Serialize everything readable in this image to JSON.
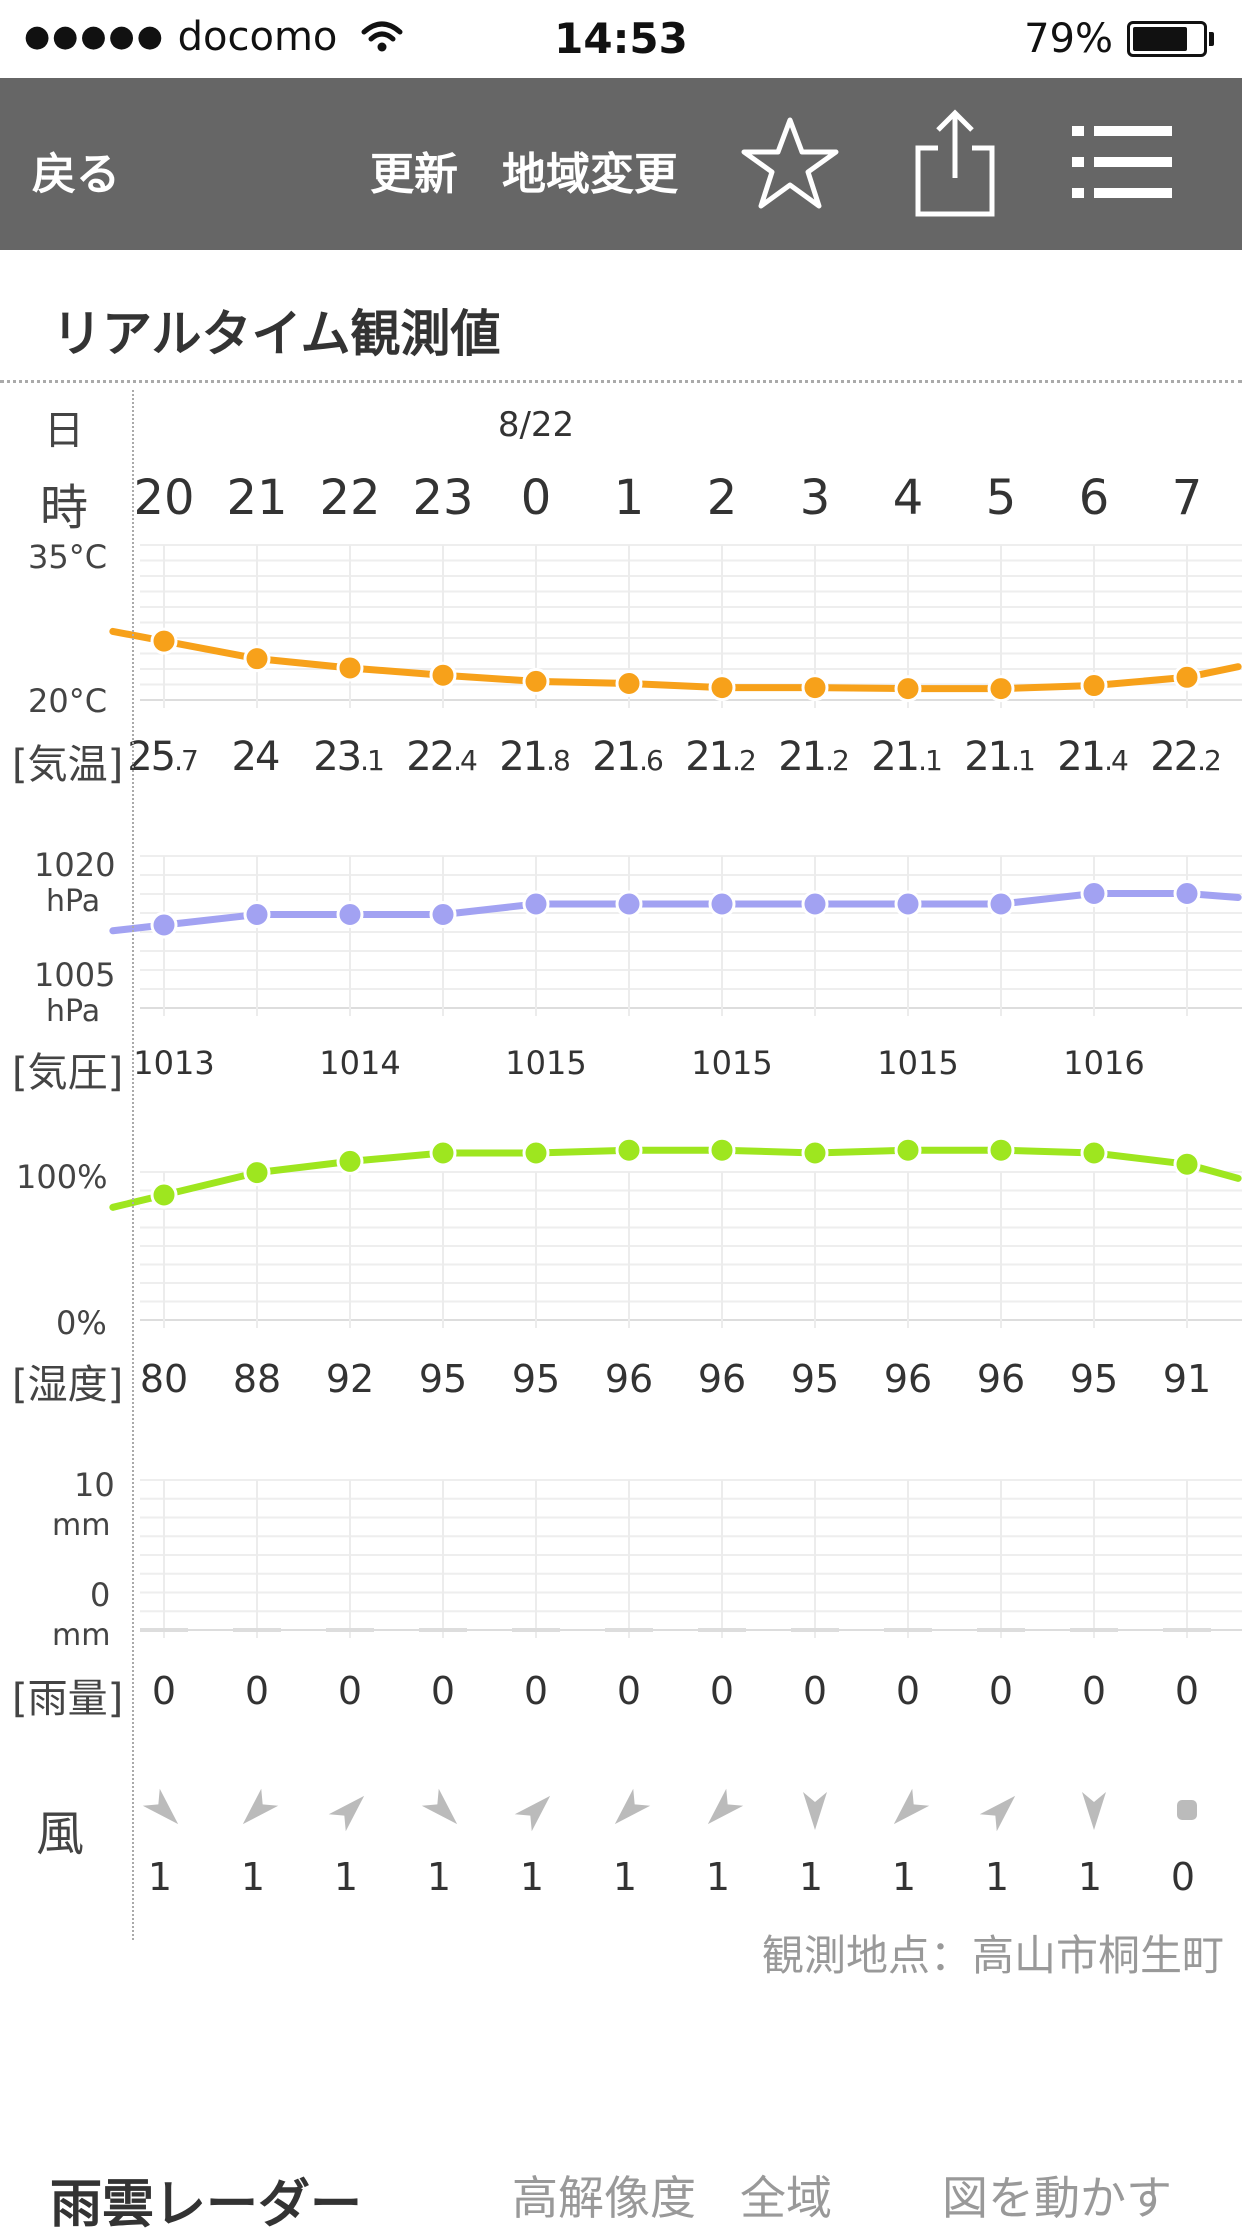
{
  "status_bar": {
    "signal_dots": "●●●●●",
    "carrier": "docomo",
    "time": "14:53",
    "battery": "79%",
    "battery_level": 0.79
  },
  "nav": {
    "back": "戻る",
    "refresh": "更新",
    "region_change": "地域変更",
    "icons": [
      "star-icon",
      "share-icon",
      "menu-icon"
    ]
  },
  "section_title": "リアルタイム観測値",
  "row_labels": {
    "day": "日",
    "hour": "時",
    "temp": "[気温]",
    "pressure": "[気圧]",
    "humidity": "[湿度]",
    "rain": "[雨量]",
    "wind": "風"
  },
  "date_label": "8/22",
  "hours": [
    "20",
    "21",
    "22",
    "23",
    "0",
    "1",
    "2",
    "3",
    "4",
    "5",
    "6",
    "7"
  ],
  "axis_labels": {
    "temp_top": "35°C",
    "temp_bottom": "20°C",
    "pressure_top": "1020",
    "pressure_top_unit": "hPa",
    "pressure_bottom": "1005",
    "pressure_bottom_unit": "hPa",
    "humidity_top": "100%",
    "humidity_bottom": "0%",
    "rain_top": "10",
    "rain_top_unit": "mm",
    "rain_bottom": "0",
    "rain_bottom_unit": "mm"
  },
  "temperature": [
    {
      "i": "25",
      "d": ".7"
    },
    {
      "i": "24",
      "d": ""
    },
    {
      "i": "23",
      "d": ".1"
    },
    {
      "i": "22",
      "d": ".4"
    },
    {
      "i": "21",
      "d": ".8"
    },
    {
      "i": "21",
      "d": ".6"
    },
    {
      "i": "21",
      "d": ".2"
    },
    {
      "i": "21",
      "d": ".2"
    },
    {
      "i": "21",
      "d": ".1"
    },
    {
      "i": "21",
      "d": ".1"
    },
    {
      "i": "21",
      "d": ".4"
    },
    {
      "i": "22",
      "d": ".2"
    }
  ],
  "temperature_values": [
    25.7,
    24,
    23.1,
    22.4,
    21.8,
    21.6,
    21.2,
    21.2,
    21.1,
    21.1,
    21.4,
    22.2
  ],
  "pressure_values": [
    1013,
    1014,
    1014,
    1014,
    1015,
    1015,
    1015,
    1015,
    1015,
    1015,
    1016,
    1016
  ],
  "pressure_labels": [
    "1013",
    "1014",
    "1015",
    "1015",
    "1015",
    "1016"
  ],
  "humidity_values": [
    80,
    88,
    92,
    95,
    95,
    96,
    96,
    95,
    96,
    96,
    95,
    91
  ],
  "humidity_labels": [
    "80",
    "88",
    "92",
    "95",
    "95",
    "96",
    "96",
    "95",
    "96",
    "96",
    "95",
    "91"
  ],
  "rain_values": [
    0,
    0,
    0,
    0,
    0,
    0,
    0,
    0,
    0,
    0,
    0,
    0
  ],
  "rain_labels": [
    "0",
    "0",
    "0",
    "0",
    "0",
    "0",
    "0",
    "0",
    "0",
    "0",
    "0",
    "0"
  ],
  "wind_dirs_deg": [
    315,
    45,
    225,
    315,
    225,
    45,
    45,
    0,
    45,
    225,
    0,
    null
  ],
  "wind_speeds": [
    "1",
    "1",
    "1",
    "1",
    "1",
    "1",
    "1",
    "1",
    "1",
    "1",
    "1",
    "0"
  ],
  "colors": {
    "temp": "#f7a11a",
    "pressure": "#a2a2f2",
    "humidity": "#9ee61f",
    "nav_bg": "#666666"
  },
  "location": "観測地点：高山市桐生町",
  "radar": {
    "title": "雨雲レーダー",
    "links": [
      "高解像度",
      "全域",
      "図を動かす"
    ]
  }
}
